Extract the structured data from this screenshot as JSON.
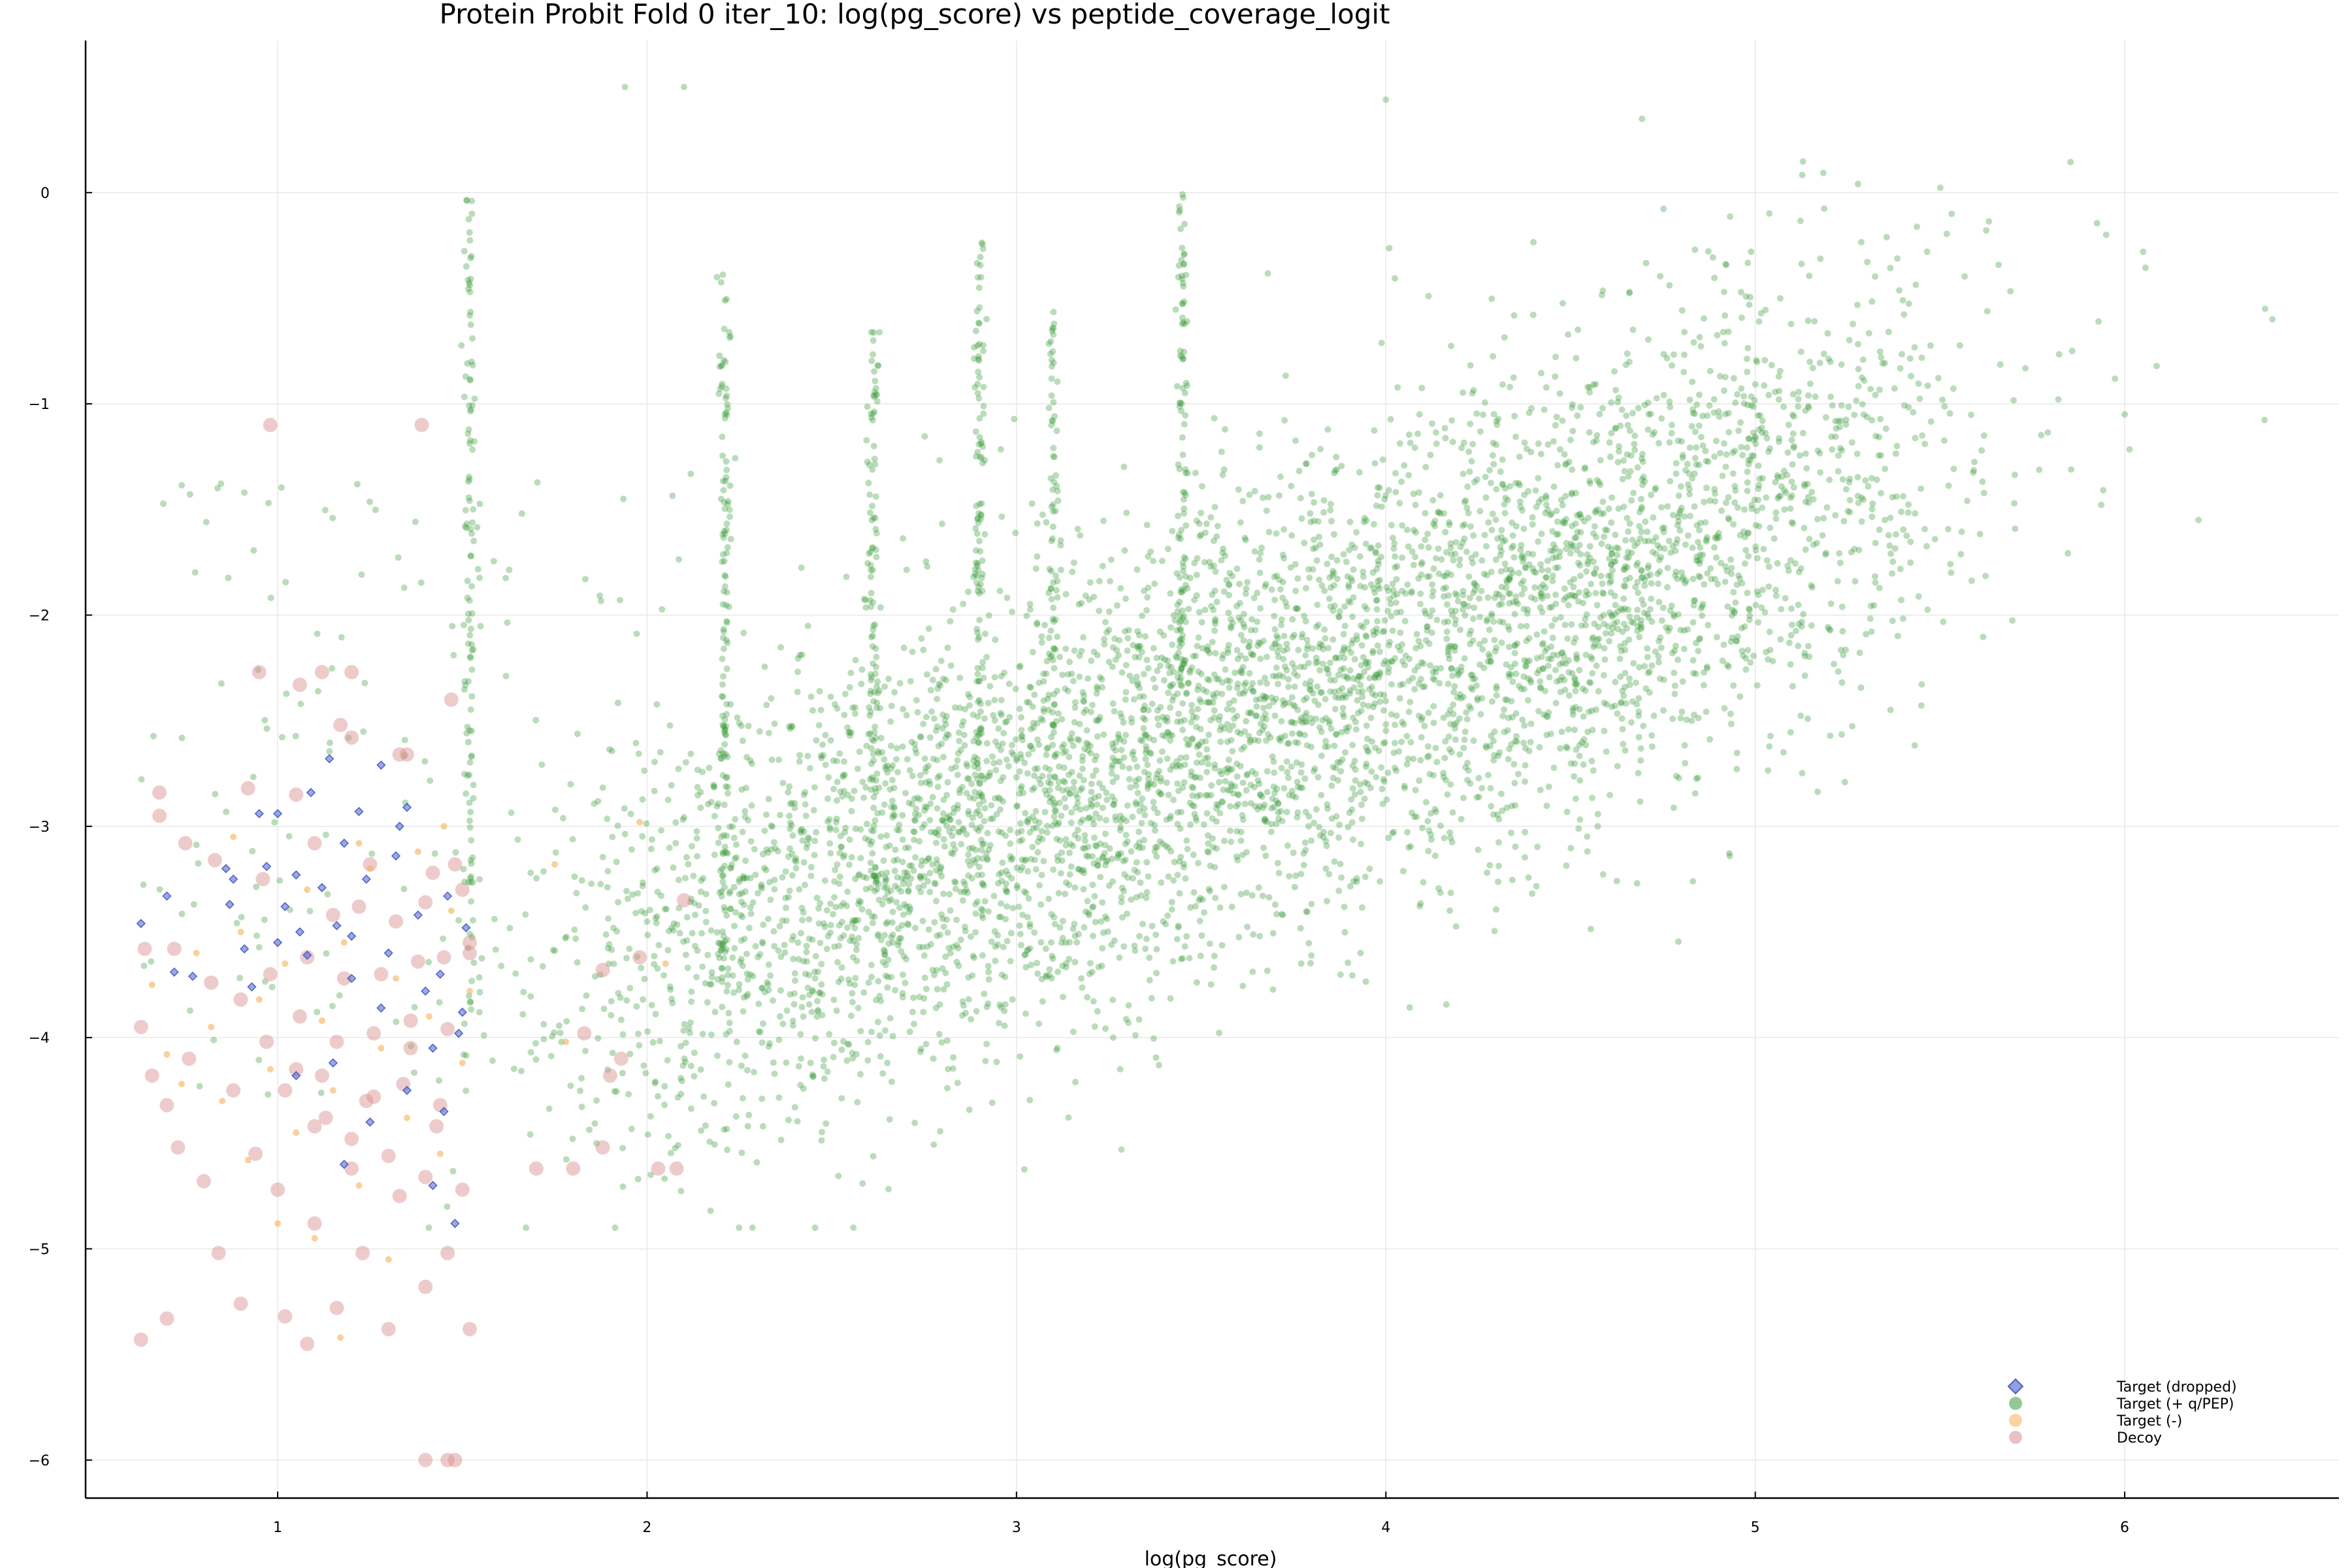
{
  "chart_data": {
    "type": "scatter",
    "title": "Protein Probit Fold 0 iter_10: log(pg_score) vs peptide_coverage_logit",
    "xlabel": "log(pg_score)",
    "ylabel": "",
    "xlim": [
      0.48,
      6.58
    ],
    "ylim": [
      -6.18,
      0.72
    ],
    "x_ticks": [
      1,
      2,
      3,
      4,
      5,
      6
    ],
    "y_ticks": [
      0,
      -1,
      -2,
      -3,
      -4,
      -5,
      -6
    ],
    "grid": true,
    "legend_position": "bottom-right",
    "series": [
      {
        "name": "Target (dropped)",
        "marker": "diamond",
        "color": "#4a60c8",
        "points": [
          [
            0.63,
            -3.46
          ],
          [
            0.7,
            -3.33
          ],
          [
            0.72,
            -3.69
          ],
          [
            0.77,
            -3.71
          ],
          [
            0.86,
            -3.2
          ],
          [
            0.87,
            -3.37
          ],
          [
            0.88,
            -3.25
          ],
          [
            0.91,
            -3.58
          ],
          [
            0.93,
            -3.76
          ],
          [
            0.95,
            -2.94
          ],
          [
            0.97,
            -3.19
          ],
          [
            1.0,
            -2.94
          ],
          [
            1.0,
            -3.55
          ],
          [
            1.02,
            -3.38
          ],
          [
            1.05,
            -3.23
          ],
          [
            1.08,
            -3.61
          ],
          [
            1.09,
            -2.84
          ],
          [
            1.12,
            -3.29
          ],
          [
            1.14,
            -2.68
          ],
          [
            1.16,
            -3.47
          ],
          [
            1.18,
            -3.08
          ],
          [
            1.2,
            -3.52
          ],
          [
            1.22,
            -2.93
          ],
          [
            1.24,
            -3.25
          ],
          [
            1.28,
            -2.71
          ],
          [
            1.3,
            -3.6
          ],
          [
            1.32,
            -3.14
          ],
          [
            1.35,
            -2.91
          ],
          [
            1.38,
            -3.42
          ],
          [
            1.4,
            -3.78
          ],
          [
            1.42,
            -4.05
          ],
          [
            1.44,
            -3.7
          ],
          [
            1.46,
            -3.33
          ],
          [
            1.49,
            -3.98
          ],
          [
            1.51,
            -3.48
          ],
          [
            1.15,
            -4.12
          ],
          [
            1.25,
            -4.4
          ],
          [
            1.35,
            -4.25
          ],
          [
            1.45,
            -4.35
          ],
          [
            1.05,
            -4.18
          ],
          [
            1.5,
            -3.88
          ],
          [
            1.28,
            -3.86
          ],
          [
            1.18,
            -4.6
          ],
          [
            1.42,
            -4.7
          ],
          [
            1.48,
            -4.88
          ],
          [
            1.2,
            -3.72
          ],
          [
            1.33,
            -3.0
          ],
          [
            1.06,
            -3.5
          ]
        ]
      },
      {
        "name": "Target (+ q/PEP)",
        "marker": "circle",
        "color": "#3a9a3a",
        "points": []
      },
      {
        "name": "Target (-)",
        "marker": "circle",
        "color": "#f5b05a",
        "points": [
          [
            0.66,
            -3.75
          ],
          [
            0.7,
            -4.08
          ],
          [
            0.74,
            -4.22
          ],
          [
            0.78,
            -3.6
          ],
          [
            0.82,
            -3.95
          ],
          [
            0.85,
            -4.3
          ],
          [
            0.9,
            -3.5
          ],
          [
            0.95,
            -3.82
          ],
          [
            0.98,
            -4.15
          ],
          [
            1.02,
            -3.65
          ],
          [
            1.05,
            -4.45
          ],
          [
            1.08,
            -3.3
          ],
          [
            1.12,
            -3.92
          ],
          [
            1.15,
            -4.25
          ],
          [
            1.18,
            -3.55
          ],
          [
            1.22,
            -4.7
          ],
          [
            1.25,
            -3.2
          ],
          [
            1.28,
            -4.05
          ],
          [
            1.32,
            -3.72
          ],
          [
            1.35,
            -4.38
          ],
          [
            1.38,
            -3.12
          ],
          [
            1.41,
            -3.9
          ],
          [
            1.44,
            -4.55
          ],
          [
            1.47,
            -3.4
          ],
          [
            1.5,
            -4.12
          ],
          [
            1.52,
            -3.78
          ],
          [
            1.75,
            -3.18
          ],
          [
            1.78,
            -4.02
          ],
          [
            1.98,
            -2.98
          ],
          [
            2.05,
            -3.65
          ],
          [
            1.17,
            -5.42
          ],
          [
            1.1,
            -4.95
          ],
          [
            0.88,
            -3.05
          ],
          [
            1.0,
            -4.88
          ],
          [
            1.3,
            -5.05
          ],
          [
            1.45,
            -3.0
          ],
          [
            1.22,
            -3.08
          ],
          [
            0.92,
            -4.58
          ]
        ]
      },
      {
        "name": "Decoy",
        "marker": "circle",
        "color": "#d98c8c",
        "points": [
          [
            0.63,
            -5.43
          ],
          [
            0.7,
            -5.33
          ],
          [
            0.63,
            -3.95
          ],
          [
            0.66,
            -4.18
          ],
          [
            0.7,
            -4.32
          ],
          [
            0.73,
            -4.52
          ],
          [
            0.76,
            -4.1
          ],
          [
            0.8,
            -4.68
          ],
          [
            0.84,
            -5.02
          ],
          [
            0.88,
            -4.25
          ],
          [
            0.9,
            -5.26
          ],
          [
            0.94,
            -4.55
          ],
          [
            0.97,
            -4.02
          ],
          [
            1.0,
            -4.72
          ],
          [
            1.02,
            -5.32
          ],
          [
            1.05,
            -4.15
          ],
          [
            1.08,
            -5.45
          ],
          [
            1.1,
            -4.88
          ],
          [
            1.13,
            -4.38
          ],
          [
            1.16,
            -5.28
          ],
          [
            1.2,
            -4.62
          ],
          [
            1.23,
            -5.02
          ],
          [
            1.26,
            -4.28
          ],
          [
            1.3,
            -5.38
          ],
          [
            1.33,
            -4.75
          ],
          [
            1.36,
            -4.05
          ],
          [
            1.4,
            -5.18
          ],
          [
            1.43,
            -4.42
          ],
          [
            1.46,
            -5.02
          ],
          [
            1.5,
            -4.72
          ],
          [
            1.52,
            -5.38
          ],
          [
            1.4,
            -6.0
          ],
          [
            1.46,
            -6.0
          ],
          [
            1.48,
            -6.0
          ],
          [
            0.98,
            -1.1
          ],
          [
            1.39,
            -1.1
          ],
          [
            0.95,
            -2.27
          ],
          [
            1.06,
            -2.33
          ],
          [
            1.12,
            -2.27
          ],
          [
            1.2,
            -2.27
          ],
          [
            1.47,
            -2.4
          ],
          [
            1.17,
            -2.52
          ],
          [
            1.2,
            -2.58
          ],
          [
            1.33,
            -2.66
          ],
          [
            1.35,
            -2.66
          ],
          [
            1.05,
            -2.85
          ],
          [
            0.92,
            -2.82
          ],
          [
            0.68,
            -2.84
          ],
          [
            0.75,
            -3.08
          ],
          [
            0.83,
            -3.16
          ],
          [
            0.96,
            -3.25
          ],
          [
            1.1,
            -3.08
          ],
          [
            1.25,
            -3.18
          ],
          [
            1.42,
            -3.22
          ],
          [
            1.48,
            -3.18
          ],
          [
            1.52,
            -3.55
          ],
          [
            1.52,
            -3.6
          ],
          [
            1.45,
            -3.62
          ],
          [
            1.38,
            -3.64
          ],
          [
            1.28,
            -3.7
          ],
          [
            1.18,
            -3.72
          ],
          [
            1.08,
            -3.62
          ],
          [
            0.98,
            -3.7
          ],
          [
            0.9,
            -3.82
          ],
          [
            0.82,
            -3.74
          ],
          [
            0.72,
            -3.58
          ],
          [
            0.64,
            -3.58
          ],
          [
            0.68,
            -2.95
          ],
          [
            1.15,
            -3.42
          ],
          [
            1.22,
            -3.38
          ],
          [
            1.32,
            -3.45
          ],
          [
            1.4,
            -3.36
          ],
          [
            1.5,
            -3.3
          ],
          [
            1.06,
            -3.9
          ],
          [
            1.16,
            -4.02
          ],
          [
            1.26,
            -3.98
          ],
          [
            1.36,
            -3.92
          ],
          [
            1.46,
            -3.96
          ],
          [
            1.02,
            -4.25
          ],
          [
            1.12,
            -4.18
          ],
          [
            1.24,
            -4.3
          ],
          [
            1.34,
            -4.22
          ],
          [
            1.44,
            -4.32
          ],
          [
            1.7,
            -4.62
          ],
          [
            1.8,
            -4.62
          ],
          [
            1.88,
            -4.52
          ],
          [
            1.9,
            -4.18
          ],
          [
            1.93,
            -4.1
          ],
          [
            1.83,
            -3.98
          ],
          [
            1.98,
            -3.62
          ],
          [
            2.03,
            -4.62
          ],
          [
            2.08,
            -4.62
          ],
          [
            2.1,
            -3.35
          ],
          [
            1.88,
            -3.68
          ],
          [
            1.2,
            -4.48
          ],
          [
            1.3,
            -4.56
          ],
          [
            1.4,
            -4.66
          ],
          [
            1.1,
            -4.42
          ]
        ]
      }
    ]
  }
}
